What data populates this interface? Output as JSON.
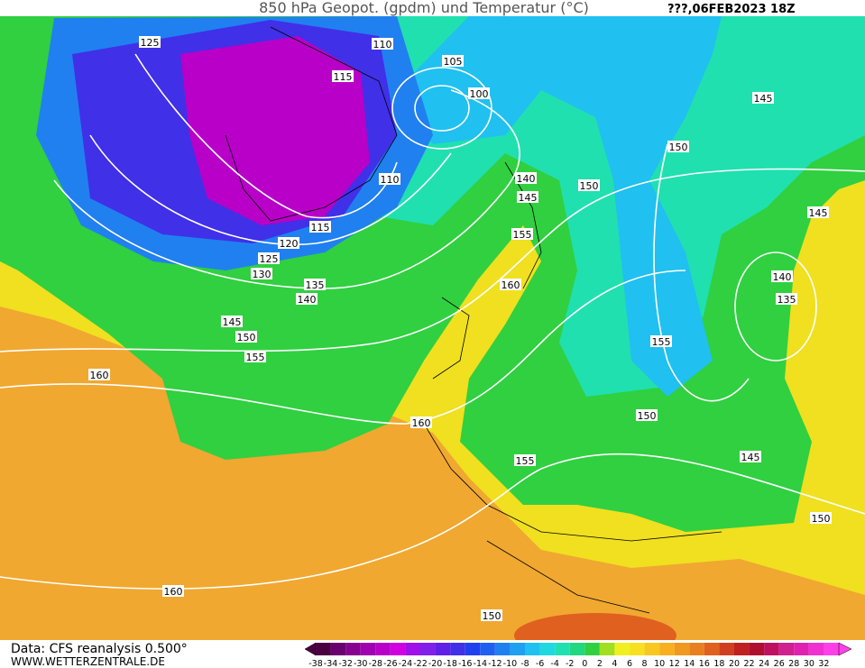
{
  "header": {
    "title": "850 hPa Geopot. (gpdm) und Temperatur (°C)",
    "date": "???,06FEB2023 18Z"
  },
  "footer": {
    "source": "Data: CFS reanalysis 0.500°",
    "website": "WWW.WETTERZENTRALE.DE"
  },
  "contour_labels": [
    125,
    110,
    105,
    115,
    100,
    110,
    140,
    145,
    150,
    115,
    120,
    125,
    130,
    135,
    140,
    145,
    150,
    155,
    160,
    160,
    155,
    160,
    155,
    155,
    150,
    145,
    150,
    160,
    150,
    145,
    150,
    145,
    140,
    135
  ],
  "colorbar": {
    "ticks": [
      -38,
      -34,
      -32,
      -30,
      -28,
      -26,
      -24,
      -22,
      -20,
      -18,
      -16,
      -14,
      -12,
      -10,
      -8,
      -6,
      -4,
      -2,
      0,
      2,
      4,
      6,
      8,
      10,
      12,
      14,
      16,
      18,
      20,
      22,
      24,
      26,
      28,
      30,
      32
    ],
    "colors": [
      "#4a0040",
      "#6a0070",
      "#880090",
      "#a000b0",
      "#b800c8",
      "#d000e0",
      "#a010e8",
      "#8020e8",
      "#6020e8",
      "#4030e8",
      "#2040f0",
      "#2060f0",
      "#2080f0",
      "#20a0f0",
      "#20c0f0",
      "#20d8e0",
      "#20e0b0",
      "#20d880",
      "#30d040",
      "#a0e020",
      "#f0f020",
      "#f8e020",
      "#f8c820",
      "#f8b020",
      "#f09820",
      "#e88020",
      "#e06020",
      "#d04020",
      "#c02020",
      "#b01030",
      "#c01060",
      "#d02090",
      "#e020b0",
      "#f030d0",
      "#ff40e8"
    ]
  }
}
